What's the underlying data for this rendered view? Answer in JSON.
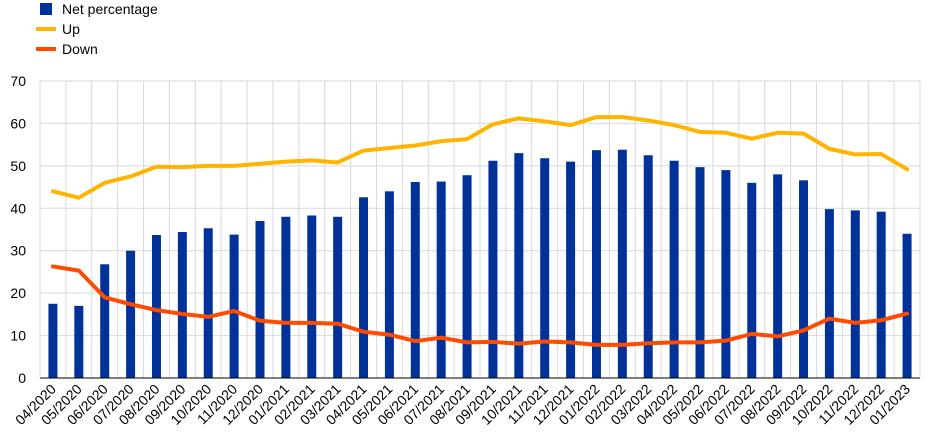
{
  "chart_data": {
    "type": "bar",
    "categories": [
      "04/2020",
      "05/2020",
      "06/2020",
      "07/2020",
      "08/2020",
      "09/2020",
      "10/2020",
      "11/2020",
      "12/2020",
      "01/2021",
      "02/2021",
      "03/2021",
      "04/2021",
      "05/2021",
      "06/2021",
      "07/2021",
      "08/2021",
      "09/2021",
      "10/2021",
      "11/2021",
      "12/2021",
      "01/2022",
      "02/2022",
      "03/2022",
      "04/2022",
      "05/2022",
      "06/2022",
      "07/2022",
      "08/2022",
      "09/2022",
      "10/2022",
      "11/2022",
      "12/2022",
      "01/2023"
    ],
    "series": [
      {
        "name": "Net percentage",
        "kind": "bar",
        "color": "#003299",
        "values": [
          17.5,
          17,
          26.8,
          30,
          33.7,
          34.4,
          35.3,
          33.8,
          37,
          38,
          38.3,
          38,
          42.6,
          44,
          46.2,
          46.3,
          47.8,
          51.2,
          53,
          51.8,
          51,
          53.7,
          53.8,
          52.5,
          51.2,
          49.7,
          49,
          46,
          48,
          46.6,
          39.8,
          39.5,
          39.2,
          34
        ]
      },
      {
        "name": "Up",
        "kind": "line",
        "color": "#FFB400",
        "values": [
          44,
          42.5,
          46,
          47.5,
          49.8,
          49.7,
          50,
          50,
          50.5,
          51,
          51.3,
          50.8,
          53.6,
          54.2,
          54.8,
          55.8,
          56.3,
          59.8,
          61.2,
          60.5,
          59.6,
          61.5,
          61.5,
          60.7,
          59.6,
          58,
          57.8,
          56.4,
          57.8,
          57.6,
          54,
          52.7,
          52.8,
          49.2
        ]
      },
      {
        "name": "Down",
        "kind": "line",
        "color": "#FF4B00",
        "values": [
          26.3,
          25.3,
          19,
          17.4,
          16,
          15.1,
          14.4,
          15.8,
          13.5,
          13,
          13,
          12.8,
          10.9,
          10.2,
          8.7,
          9.5,
          8.4,
          8.5,
          8.1,
          8.6,
          8.4,
          7.8,
          7.8,
          8.2,
          8.4,
          8.4,
          8.8,
          10.4,
          9.8,
          11.2,
          14,
          13,
          13.6,
          15.2
        ]
      }
    ],
    "title": "",
    "xlabel": "",
    "ylabel": "",
    "ylim": [
      0,
      70
    ],
    "yticks": [
      0,
      10,
      20,
      30,
      40,
      50,
      60,
      70
    ],
    "grid": true,
    "legend_placement": "top-left"
  }
}
